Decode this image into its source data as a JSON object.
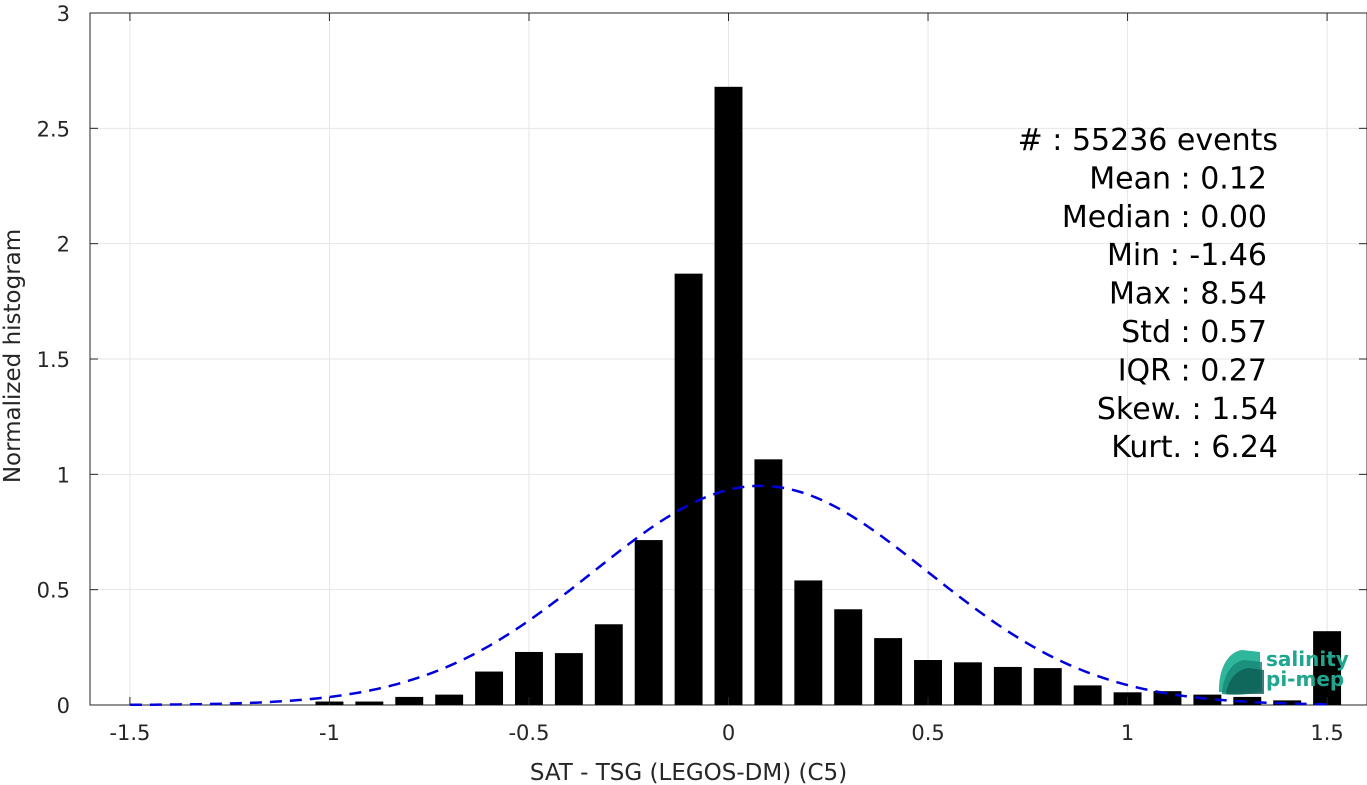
{
  "chart_data": {
    "type": "bar",
    "xlabel": "SAT - TSG (LEGOS-DM) (C5)",
    "ylabel": "Normalized histogram",
    "xlim": [
      -1.6,
      1.6
    ],
    "ylim": [
      0,
      3
    ],
    "x_ticks": [
      "-1.5",
      "-1",
      "-0.5",
      "0",
      "0.5",
      "1",
      "1.5"
    ],
    "x_tick_values": [
      -1.5,
      -1,
      -0.5,
      0,
      0.5,
      1,
      1.5
    ],
    "y_ticks": [
      "0",
      "0.5",
      "1",
      "1.5",
      "2",
      "2.5",
      "3"
    ],
    "y_tick_values": [
      0,
      0.5,
      1,
      1.5,
      2,
      2.5,
      3
    ],
    "grid": true,
    "bar_color": "#000000",
    "bins": [
      {
        "x": -1.5,
        "value": 0.0
      },
      {
        "x": -1.4,
        "value": 0.0
      },
      {
        "x": -1.3,
        "value": 0.0
      },
      {
        "x": -1.2,
        "value": 0.0
      },
      {
        "x": -1.1,
        "value": 0.0
      },
      {
        "x": -1.0,
        "value": 0.015
      },
      {
        "x": -0.9,
        "value": 0.015
      },
      {
        "x": -0.8,
        "value": 0.035
      },
      {
        "x": -0.7,
        "value": 0.045
      },
      {
        "x": -0.6,
        "value": 0.145
      },
      {
        "x": -0.5,
        "value": 0.23
      },
      {
        "x": -0.4,
        "value": 0.225
      },
      {
        "x": -0.3,
        "value": 0.35
      },
      {
        "x": -0.2,
        "value": 0.715
      },
      {
        "x": -0.1,
        "value": 1.87
      },
      {
        "x": 0.0,
        "value": 2.68
      },
      {
        "x": 0.1,
        "value": 1.065
      },
      {
        "x": 0.2,
        "value": 0.54
      },
      {
        "x": 0.3,
        "value": 0.415
      },
      {
        "x": 0.4,
        "value": 0.29
      },
      {
        "x": 0.5,
        "value": 0.195
      },
      {
        "x": 0.6,
        "value": 0.185
      },
      {
        "x": 0.7,
        "value": 0.165
      },
      {
        "x": 0.8,
        "value": 0.16
      },
      {
        "x": 0.9,
        "value": 0.085
      },
      {
        "x": 1.0,
        "value": 0.055
      },
      {
        "x": 1.1,
        "value": 0.06
      },
      {
        "x": 1.2,
        "value": 0.045
      },
      {
        "x": 1.3,
        "value": 0.035
      },
      {
        "x": 1.4,
        "value": 0.02
      },
      {
        "x": 1.5,
        "value": 0.32
      }
    ],
    "fit_curve": {
      "type": "gaussian",
      "mean": 0.08,
      "std": 0.42,
      "peak": 0.95,
      "style": "dashed",
      "color": "#0000dd"
    },
    "annotation_lines": [
      "#  : 55236 events",
      "Mean : 0.12",
      "Median : 0.00",
      "Min : -1.46",
      "Max : 8.54",
      "Std : 0.57",
      "IQR : 0.27",
      "Skew. : 1.54",
      "Kurt. : 6.24"
    ]
  },
  "logo": {
    "line1": "salinity",
    "line2": "pi-mep",
    "color": "#20a68f"
  }
}
